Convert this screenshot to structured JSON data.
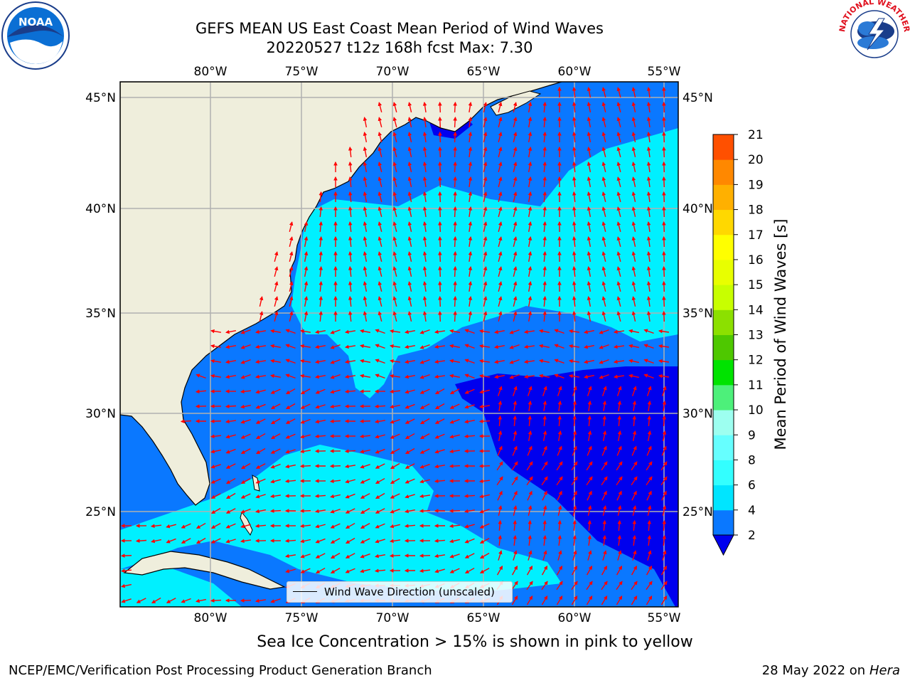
{
  "title_line1": "GEFS MEAN US East Coast Mean Period of Wind Waves",
  "title_line2": "20220527 t12z 168h fcst   Max: 7.30",
  "footer_note": "Sea Ice Concentration > 15% is shown in pink to yellow",
  "footer_left": "NCEP/EMC/Verification Post Processing Product Generation Branch",
  "footer_date": "28 May 2022 on",
  "footer_machine": "Hera",
  "legend_label": "Wind Wave Direction (unscaled)",
  "colorbar": {
    "label": "Mean Period of Wind Waves [s]",
    "ticks": [
      "2",
      "4",
      "6",
      "8",
      "9",
      "10",
      "11",
      "12",
      "13",
      "14",
      "15",
      "16",
      "17",
      "18",
      "19",
      "20",
      "21"
    ],
    "colors": [
      "#0a78ff",
      "#00e5ff",
      "#33ffff",
      "#66ffff",
      "#9dfff0",
      "#4df07a",
      "#00e300",
      "#4ec800",
      "#8ce000",
      "#c8ff00",
      "#e8ff00",
      "#ffff00",
      "#ffd800",
      "#ffb000",
      "#ff8800",
      "#ff5000",
      "#ff1000",
      "#ff0000"
    ],
    "under_color": "#0000ee"
  },
  "map": {
    "lon_labels": [
      "80°W",
      "75°W",
      "70°W",
      "65°W",
      "60°W",
      "55°W"
    ],
    "lat_labels": [
      "45°N",
      "40°N",
      "35°N",
      "30°N",
      "25°N"
    ],
    "lon_range": [
      -85,
      -54.3
    ],
    "lat_range": [
      20.5,
      45.8
    ],
    "land_color": "#efeedc",
    "ocean_colors": {
      "dark": "#0000ee",
      "mid": "#0a78ff",
      "light": "#00f0ff"
    },
    "arrow_color": "#ff0000"
  },
  "logos": {
    "noaa_text": "NOAA",
    "nws_text": "NATIONAL WEATHER SERVICE"
  }
}
